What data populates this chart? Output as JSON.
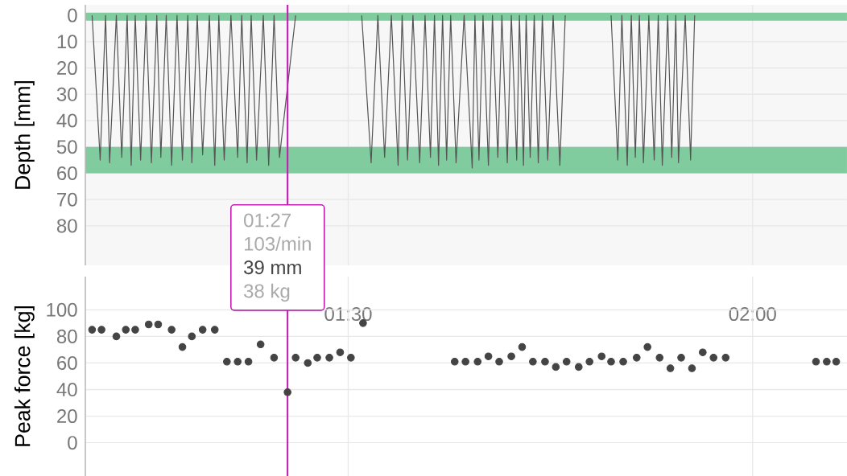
{
  "chart_data": [
    {
      "type": "line",
      "ylabel": "Depth [mm]",
      "color": "#555555",
      "x": [
        71.0,
        71.6,
        72.0,
        72.3,
        72.8,
        73.2,
        73.6,
        73.9,
        74.2,
        74.6,
        75.0,
        75.4,
        75.8,
        76.1,
        76.5,
        76.9,
        77.3,
        77.7,
        78.1,
        78.4,
        78.8,
        79.2,
        79.7,
        80.1,
        80.4,
        80.8,
        81.3,
        81.8,
        82.1,
        82.5,
        82.8,
        83.2,
        83.7,
        84.1,
        84.5,
        84.9,
        86.1,
        88.0,
        91.0,
        91.7,
        92.2,
        92.7,
        93.2,
        93.7,
        94.0,
        94.4,
        94.8,
        95.3,
        95.7,
        96.1,
        96.4,
        96.7,
        97.0,
        97.3,
        97.6,
        98.0,
        98.6,
        99.2,
        99.4,
        99.7,
        100.0,
        100.4,
        100.7,
        101.1,
        101.4,
        101.8,
        102.1,
        102.5,
        102.7,
        103.0,
        103.2,
        103.5,
        103.8,
        104.1,
        104.4,
        104.8,
        105.2,
        105.7,
        106.1,
        108.0,
        109.5,
        110.0,
        110.3,
        110.7,
        111.0,
        111.3,
        111.6,
        111.9,
        112.3,
        112.7,
        113.0,
        113.3,
        113.7,
        114.0,
        114.3,
        114.5,
        115.0,
        115.4,
        115.7
      ],
      "values": [
        0,
        55,
        0,
        56,
        0,
        54,
        0,
        57,
        0,
        55,
        0,
        56,
        0,
        54,
        0,
        57,
        0,
        55,
        0,
        56,
        0,
        53,
        0,
        57,
        0,
        55,
        0,
        54,
        0,
        56,
        0,
        55,
        0,
        57,
        0,
        54,
        0,
        null,
        0,
        56,
        0,
        54,
        0,
        57,
        0,
        55,
        0,
        56,
        0,
        54,
        0,
        57,
        0,
        55,
        0,
        56,
        0,
        58,
        0,
        55,
        0,
        57,
        0,
        54,
        0,
        56,
        0,
        55,
        0,
        57,
        0,
        54,
        0,
        56,
        0,
        55,
        0,
        57,
        0,
        null,
        0,
        55,
        0,
        57,
        0,
        54,
        0,
        56,
        0,
        55,
        0,
        57,
        0,
        54,
        0,
        56,
        0,
        55,
        0
      ],
      "xlim": [
        70.5,
        127
      ],
      "ylim": [
        95,
        -4
      ],
      "xticks": [
        {
          "value": 90,
          "label": "01:30"
        },
        {
          "value": 120,
          "label": "02:00"
        }
      ],
      "yticks": [
        0,
        10,
        20,
        30,
        40,
        50,
        60,
        70,
        80
      ],
      "grid": true,
      "bands": [
        {
          "axis": "y",
          "from": -1,
          "to": 2,
          "color": "#80cc9e"
        },
        {
          "axis": "y",
          "from": 50,
          "to": 60,
          "color": "#80cc9e"
        }
      ],
      "ref_lines": [
        {
          "axis": "x",
          "value": 85.5,
          "color": "#c21fb2"
        }
      ],
      "annotations": [
        "01:27",
        "103/min",
        "39 mm",
        "38 kg"
      ]
    },
    {
      "type": "scatter",
      "ylabel": "Peak force [kg]",
      "color": "#444444",
      "marker": "circle",
      "x": [
        71.0,
        71.7,
        72.8,
        73.5,
        74.2,
        75.2,
        75.9,
        76.9,
        77.7,
        78.4,
        79.2,
        80.1,
        81.0,
        81.8,
        82.6,
        83.5,
        84.5,
        85.5,
        86.1,
        87.0,
        87.7,
        88.6,
        89.4,
        90.2,
        91.1,
        97.9,
        98.7,
        99.6,
        100.4,
        101.2,
        102.1,
        102.9,
        103.7,
        104.6,
        105.4,
        106.2,
        107.1,
        107.9,
        108.8,
        109.5,
        110.4,
        111.4,
        112.2,
        113.1,
        113.9,
        114.7,
        115.5,
        116.3,
        117.1,
        118.0,
        124.7,
        125.5,
        126.2
      ],
      "values": [
        85,
        85,
        80,
        85,
        85,
        89,
        89,
        85,
        72,
        80,
        85,
        85,
        61,
        61,
        61,
        74,
        64,
        38,
        64,
        60,
        64,
        64,
        68,
        64,
        90,
        61,
        61,
        61,
        65,
        61,
        65,
        72,
        61,
        61,
        57,
        61,
        57,
        61,
        65,
        61,
        61,
        64,
        72,
        64,
        56,
        64,
        56,
        68,
        64,
        64,
        61,
        61,
        61
      ],
      "xlim": [
        70.5,
        127
      ],
      "ylim": [
        -25,
        125
      ],
      "xticks": [
        90,
        120
      ],
      "yticks": [
        0,
        20,
        40,
        60,
        80,
        100
      ],
      "tick_labels": "y",
      "grid": true,
      "ref_lines": [
        {
          "axis": "x",
          "value": 85.5,
          "color": "#c21fb2"
        }
      ]
    }
  ]
}
